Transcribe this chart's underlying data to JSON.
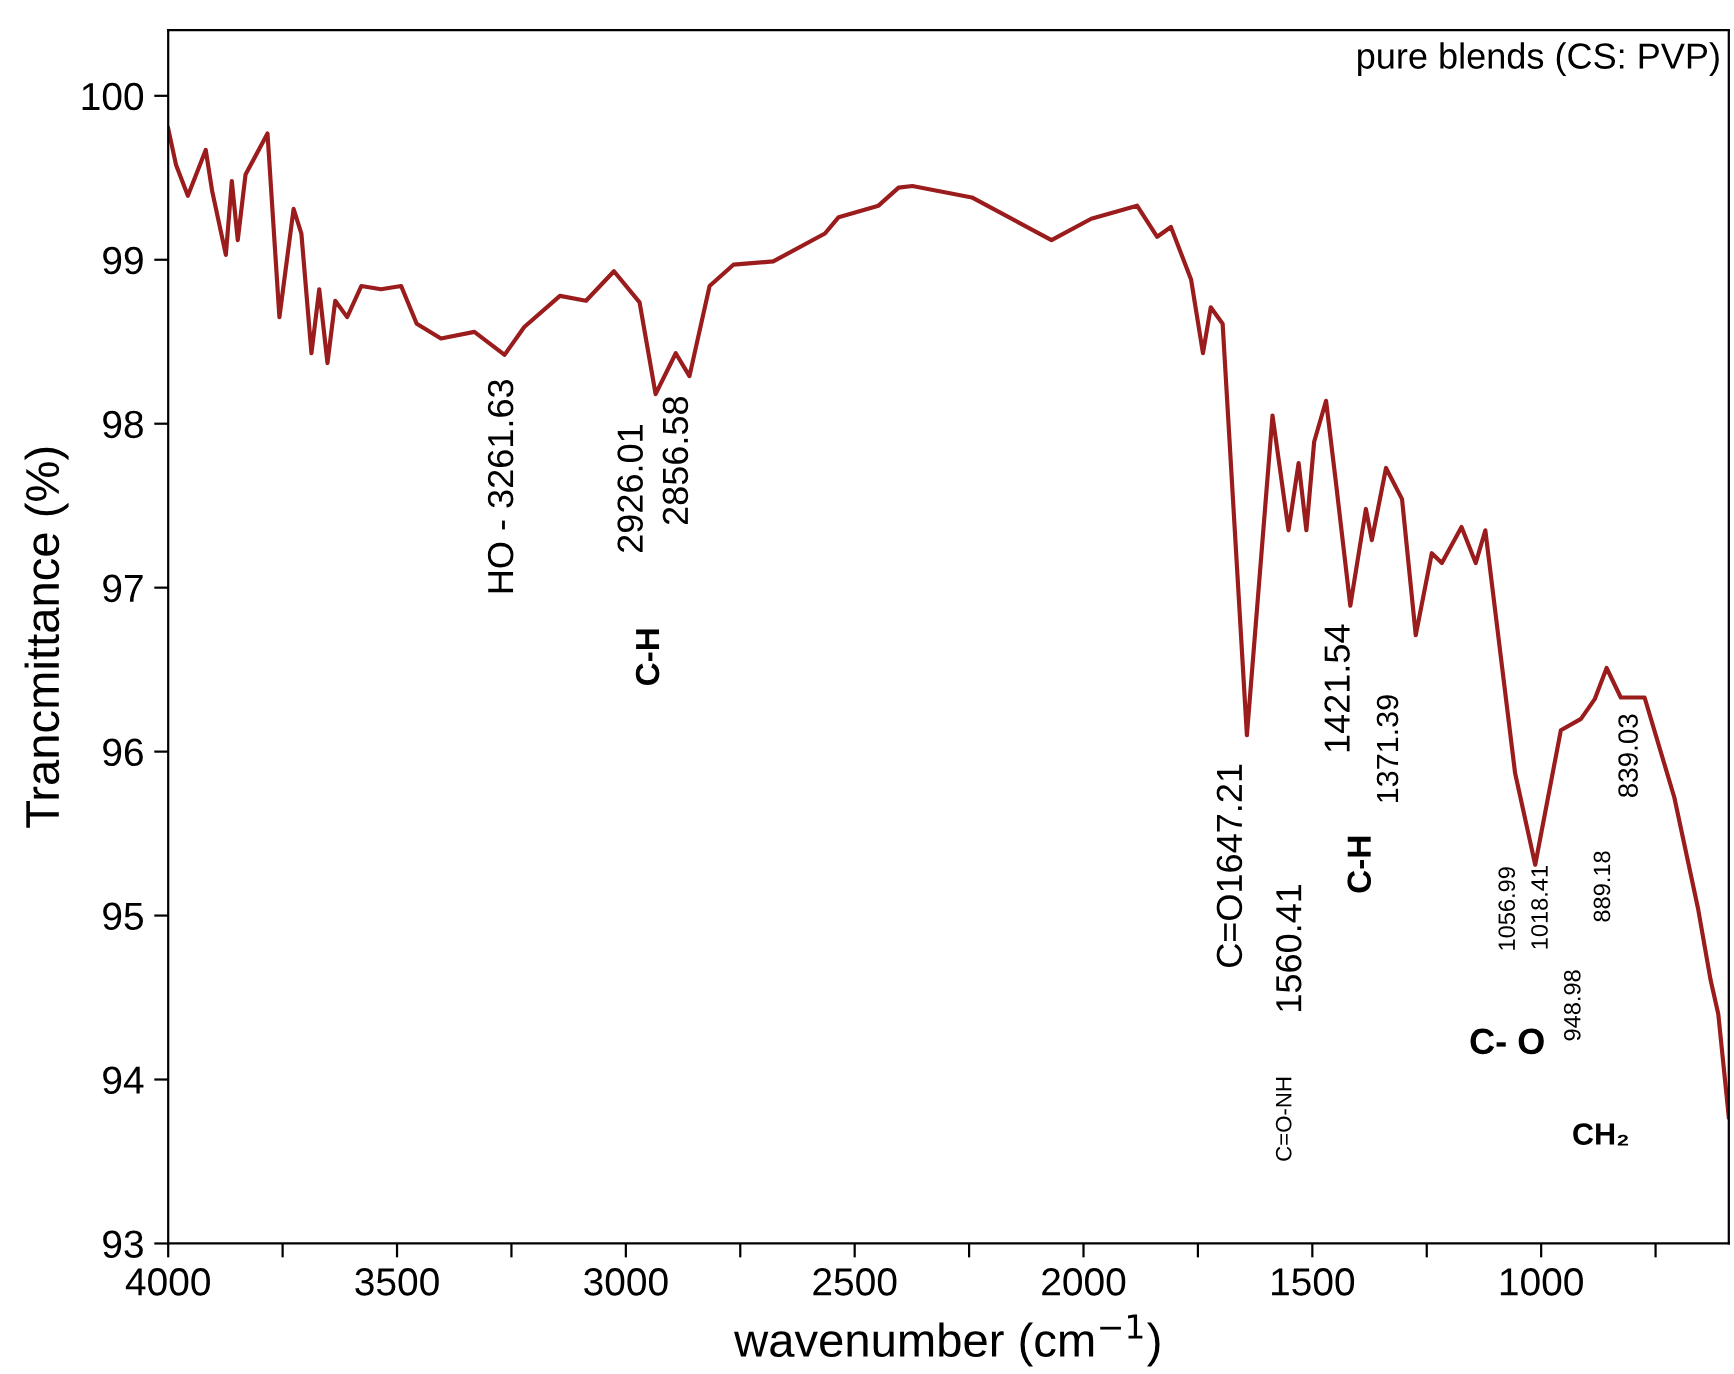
{
  "chart_data": {
    "type": "line",
    "xlabel": "wavenumber (cm$^{−1}$)",
    "ylabel": "Trancmittance (%)",
    "xlim": [
      4000,
      590
    ],
    "ylim": [
      93,
      100.4
    ],
    "xticks": [
      4000,
      {
        "value": 3750,
        "label": null
      },
      3500,
      {
        "value": 3250,
        "label": null
      },
      3000,
      {
        "value": 2750,
        "label": null
      },
      2500,
      {
        "value": 2250,
        "label": null
      },
      2000,
      {
        "value": 1750,
        "label": null
      },
      1500,
      {
        "value": 1250,
        "label": null
      },
      1000,
      {
        "value": 750,
        "label": null
      }
    ],
    "yticks": [
      93,
      94,
      95,
      96,
      97,
      98,
      99,
      100
    ],
    "grid": false,
    "legend": false,
    "marker": "none",
    "line_style": "solid",
    "series": [
      {
        "color": "#9b1c1c",
        "x": [
          4000,
          3983,
          3957,
          3918,
          3904,
          3874,
          3861,
          3848,
          3831,
          3783,
          3757,
          3726,
          3709,
          3687,
          3670,
          3652,
          3635,
          3609,
          3578,
          3535,
          3491,
          3457,
          3404,
          3331,
          3265,
          3222,
          3144,
          3087,
          3026,
          2970,
          2935,
          2891,
          2861,
          2817,
          2765,
          2678,
          2565,
          2535,
          2448,
          2404,
          2374,
          2244,
          2070,
          1983,
          1883,
          1839,
          1809,
          1765,
          1739,
          1722,
          1696,
          1643,
          1587,
          1552,
          1530,
          1513,
          1496,
          1470,
          1448,
          1417,
          1383,
          1370,
          1339,
          1304,
          1274,
          1239,
          1217,
          1174,
          1143,
          1122,
          1057,
          1013,
          957,
          913,
          883,
          857,
          826,
          774,
          709,
          657,
          630,
          613,
          590
        ],
        "values": [
          99.8,
          99.58,
          99.39,
          99.67,
          99.42,
          99.03,
          99.48,
          99.12,
          99.52,
          99.77,
          98.65,
          99.31,
          99.16,
          98.43,
          98.82,
          98.37,
          98.75,
          98.65,
          98.84,
          98.82,
          98.84,
          98.61,
          98.52,
          98.56,
          98.42,
          98.59,
          98.78,
          98.75,
          98.93,
          98.74,
          98.18,
          98.43,
          98.29,
          98.84,
          98.97,
          98.99,
          99.16,
          99.26,
          99.33,
          99.44,
          99.45,
          99.38,
          99.12,
          99.25,
          99.33,
          99.14,
          99.2,
          98.88,
          98.43,
          98.71,
          98.61,
          96.1,
          98.05,
          97.35,
          97.76,
          97.35,
          97.89,
          98.14,
          97.63,
          96.89,
          97.48,
          97.29,
          97.73,
          97.54,
          96.71,
          97.21,
          97.15,
          97.37,
          97.15,
          97.35,
          95.87,
          95.31,
          96.13,
          96.2,
          96.32,
          96.51,
          96.33,
          96.33,
          95.72,
          95.04,
          94.61,
          94.4,
          93.77
        ]
      }
    ],
    "annotations": [
      "pure blends (CS: PVP)",
      "HO - 3261.63",
      "2926.01",
      "2856.58",
      "C-H",
      "C=O1647.21",
      "C=O-NH",
      "1560.41",
      "1421.54",
      "C-H",
      "1371.39",
      "1056.99",
      "1018.41",
      "948.98",
      "C- O",
      "889.18",
      "839.03",
      "CH₂"
    ]
  }
}
